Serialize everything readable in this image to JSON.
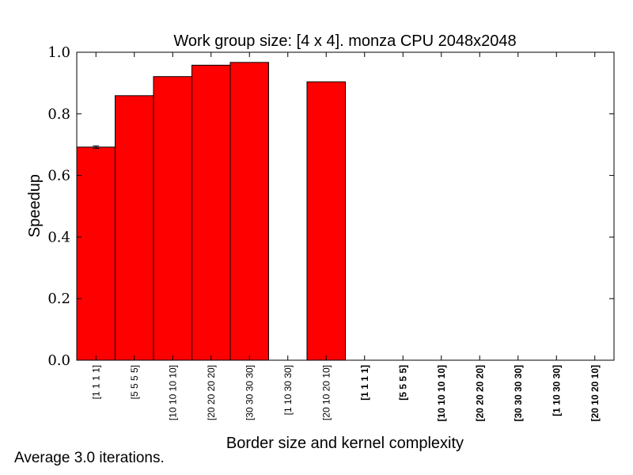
{
  "chart_data": {
    "type": "bar",
    "title": "Work group size: [4 x 4]. monza CPU 2048x2048",
    "xlabel": "Border size and kernel complexity",
    "ylabel": "Speedup",
    "ylim": [
      0.0,
      1.0
    ],
    "yticks": [
      "0.0",
      "0.2",
      "0.4",
      "0.6",
      "0.8",
      "1.0"
    ],
    "categories": [
      "[1 1 1 1]",
      "[5 5 5 5]",
      "[10 10 10 10]",
      "[20 20 20 20]",
      "[30 30 30 30]",
      "[1 10 30 30]",
      "[20 10 20 10]",
      "[1 1 1 1]",
      "[5 5 5 5]",
      "[10 10 10 10]",
      "[20 20 20 20]",
      "[30 30 30 30]",
      "[1 10 30 30]",
      "[20 10 20 10]"
    ],
    "bold_categories_from_index": 7,
    "values": [
      0.692,
      0.859,
      0.921,
      0.958,
      0.967,
      null,
      0.904,
      null,
      null,
      null,
      null,
      null,
      null,
      null
    ],
    "error": [
      0.004,
      null,
      null,
      null,
      null,
      null,
      null,
      null,
      null,
      null,
      null,
      null,
      null,
      null
    ],
    "bar_color": "#ff0000",
    "grid": false
  },
  "footnote": "Average 3.0 iterations."
}
